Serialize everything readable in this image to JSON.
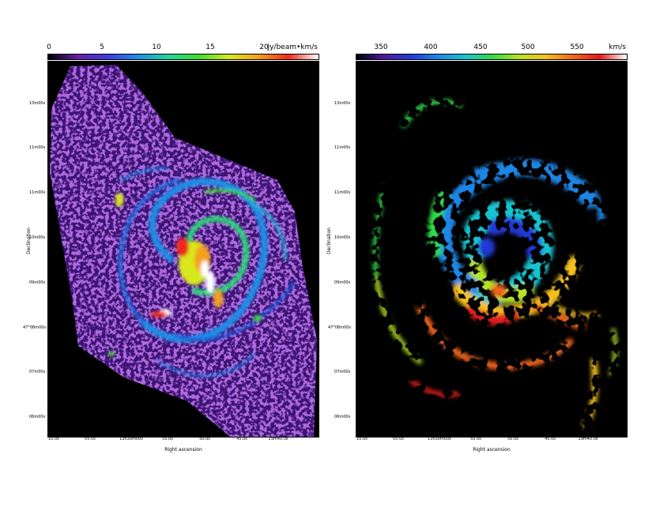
{
  "left_panel": {
    "colorbar": {
      "ticks": [
        "0",
        "5",
        "10",
        "15",
        "20"
      ],
      "unit": "Jy/beam•km/s",
      "colormap": [
        "#000000",
        "#6a1fa8",
        "#3a3de0",
        "#1f8ee6",
        "#1fd6a0",
        "#3adf2a",
        "#d8e81f",
        "#f5a01a",
        "#ef2a1a",
        "#ffffff"
      ]
    },
    "ylabel": "Declination",
    "yticks": [
      "13m00s",
      "11m00s",
      "11m00s",
      "10m00s",
      "09m00s",
      "47°08m00s",
      "07m00s",
      "06m00s"
    ],
    "xticks": [
      "10.0s",
      "05.0s",
      "13h30m00s",
      "55.0s",
      "50.0s",
      "45.0s",
      "29m40.0s"
    ],
    "xlabel": "Right ascension",
    "image": "moment-0 integrated intensity map of a face-on spiral galaxy"
  },
  "right_panel": {
    "colorbar": {
      "ticks": [
        "350",
        "400",
        "450",
        "500",
        "550"
      ],
      "unit": "km/s",
      "colormap": [
        "#000000",
        "#4b1a9e",
        "#2438d6",
        "#1b86e6",
        "#18c4d0",
        "#2fdc49",
        "#b6e326",
        "#f4c11e",
        "#f2661a",
        "#e21a1a",
        "#ffffff"
      ]
    },
    "ylabel": "Declination",
    "yticks": [
      "13m00s",
      "11m00s",
      "11m00s",
      "10m00s",
      "09m00s",
      "47°08m00s",
      "07m00s",
      "06m00s"
    ],
    "xticks": [
      "10.0s",
      "05.0s",
      "13h30m00s",
      "55.0s",
      "50.0s",
      "45.0s",
      "29m40.0s"
    ],
    "xlabel": "Right ascension",
    "image": "moment-1 velocity field map of the same spiral galaxy"
  }
}
